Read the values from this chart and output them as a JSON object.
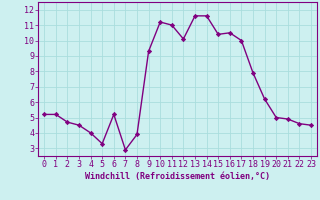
{
  "x": [
    0,
    1,
    2,
    3,
    4,
    5,
    6,
    7,
    8,
    9,
    10,
    11,
    12,
    13,
    14,
    15,
    16,
    17,
    18,
    19,
    20,
    21,
    22,
    23
  ],
  "y": [
    5.2,
    5.2,
    4.7,
    4.5,
    4.0,
    3.3,
    5.2,
    2.9,
    3.9,
    9.3,
    11.2,
    11.0,
    10.1,
    11.6,
    11.6,
    10.4,
    10.5,
    10.0,
    7.9,
    6.2,
    5.0,
    4.9,
    4.6,
    4.5
  ],
  "line_color": "#800080",
  "marker": "D",
  "marker_size": 2.2,
  "line_width": 1.0,
  "bg_color": "#cdf0f0",
  "grid_color": "#aadddd",
  "xlabel": "Windchill (Refroidissement éolien,°C)",
  "xlabel_fontsize": 6.0,
  "tick_fontsize": 6.0,
  "xlim": [
    -0.5,
    23.5
  ],
  "ylim": [
    2.5,
    12.5
  ],
  "yticks": [
    3,
    4,
    5,
    6,
    7,
    8,
    9,
    10,
    11,
    12
  ],
  "xticks": [
    0,
    1,
    2,
    3,
    4,
    5,
    6,
    7,
    8,
    9,
    10,
    11,
    12,
    13,
    14,
    15,
    16,
    17,
    18,
    19,
    20,
    21,
    22,
    23
  ]
}
